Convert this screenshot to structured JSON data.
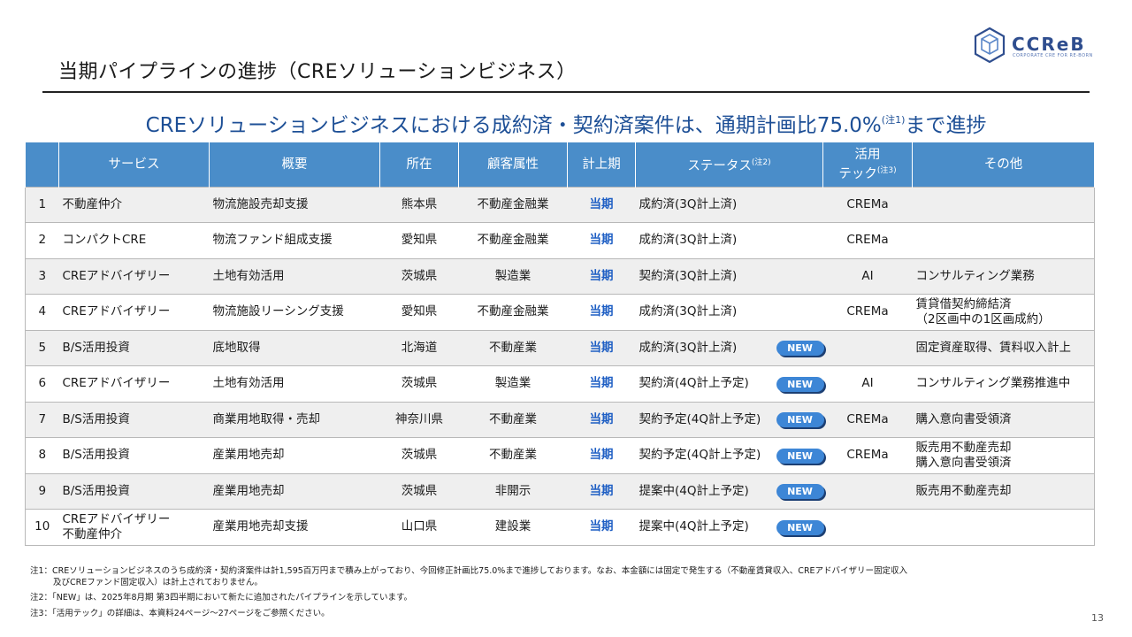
{
  "slide": {
    "title": "当期パイプラインの進捗（CREソリューションビジネス）",
    "headline_main": "CREソリューションビジネスにおける成約済・契約済案件は、通期計画比75.0%",
    "headline_sup": "(注1)",
    "headline_tail": "まで進捗",
    "page_number": "13"
  },
  "logo": {
    "text": "CCReB",
    "subtext": "CORPORATE CRE FOR RE-BORN"
  },
  "table": {
    "headers": {
      "service": "サービス",
      "summary": "概要",
      "location": "所在",
      "client": "顧客属性",
      "period": "計上期",
      "status": "ステータス",
      "status_note": "(注2)",
      "tech_line1": "活用",
      "tech_line2": "テック",
      "tech_note": "(注3)",
      "other": "その他"
    },
    "new_label": "NEW",
    "rows": [
      {
        "no": "1",
        "service": "不動産仲介",
        "service2": "",
        "summary": "物流施設売却支援",
        "location": "熊本県",
        "client": "不動産金融業",
        "period": "当期",
        "status": "成約済(3Q計上済)",
        "is_new": false,
        "tech": "CREMa",
        "other": "",
        "other2": ""
      },
      {
        "no": "2",
        "service": "コンパクトCRE",
        "service2": "",
        "summary": "物流ファンド組成支援",
        "location": "愛知県",
        "client": "不動産金融業",
        "period": "当期",
        "status": "成約済(3Q計上済)",
        "is_new": false,
        "tech": "CREMa",
        "other": "",
        "other2": ""
      },
      {
        "no": "3",
        "service": "CREアドバイザリー",
        "service2": "",
        "summary": "土地有効活用",
        "location": "茨城県",
        "client": "製造業",
        "period": "当期",
        "status": "契約済(3Q計上済)",
        "is_new": false,
        "tech": "AI",
        "other": "コンサルティング業務",
        "other2": ""
      },
      {
        "no": "4",
        "service": "CREアドバイザリー",
        "service2": "",
        "summary": "物流施設リーシング支援",
        "location": "愛知県",
        "client": "不動産金融業",
        "period": "当期",
        "status": "成約済(3Q計上済)",
        "is_new": false,
        "tech": "CREMa",
        "other": "賃貸借契約締結済",
        "other2": "（2区画中の1区画成約）"
      },
      {
        "no": "5",
        "service": "B/S活用投資",
        "service2": "",
        "summary": "底地取得",
        "location": "北海道",
        "client": "不動産業",
        "period": "当期",
        "status": "成約済(3Q計上済)",
        "is_new": true,
        "tech": "",
        "other": "固定資産取得、賃料収入計上",
        "other2": ""
      },
      {
        "no": "6",
        "service": "CREアドバイザリー",
        "service2": "",
        "summary": "土地有効活用",
        "location": "茨城県",
        "client": "製造業",
        "period": "当期",
        "status": "契約済(4Q計上予定)",
        "is_new": true,
        "tech": "AI",
        "other": "コンサルティング業務推進中",
        "other2": ""
      },
      {
        "no": "7",
        "service": "B/S活用投資",
        "service2": "",
        "summary": "商業用地取得・売却",
        "location": "神奈川県",
        "client": "不動産業",
        "period": "当期",
        "status": "契約予定(4Q計上予定)",
        "is_new": true,
        "tech": "CREMa",
        "other": "購入意向書受領済",
        "other2": ""
      },
      {
        "no": "8",
        "service": "B/S活用投資",
        "service2": "",
        "summary": "産業用地売却",
        "location": "茨城県",
        "client": "不動産業",
        "period": "当期",
        "status": "契約予定(4Q計上予定)",
        "is_new": true,
        "tech": "CREMa",
        "other": "販売用不動産売却",
        "other2": "購入意向書受領済"
      },
      {
        "no": "9",
        "service": "B/S活用投資",
        "service2": "",
        "summary": "産業用地売却",
        "location": "茨城県",
        "client": "非開示",
        "period": "当期",
        "status": "提案中(4Q計上予定)",
        "is_new": true,
        "tech": "",
        "other": "販売用不動産売却",
        "other2": ""
      },
      {
        "no": "10",
        "service": "CREアドバイザリー",
        "service2": "不動産仲介",
        "summary": "産業用地売却支援",
        "location": "山口県",
        "client": "建設業",
        "period": "当期",
        "status": "提案中(4Q計上予定)",
        "is_new": true,
        "tech": "",
        "other": "",
        "other2": ""
      }
    ]
  },
  "notes": {
    "note1_line1": "注1：CREソリューションビジネスのうち成約済・契約済案件は計1,595百万円まで積み上がっており、今回修正計画比75.0%まで進捗しております。なお、本金額には固定で発生する（不動産賃貸収入、CREアドバイザリー固定収入",
    "note1_line2": "及びCREファンド固定収入）は計上されておりません。",
    "note2": "注2：「NEW」は、2025年8月期 第3四半期において新たに追加されたパイプラインを示しています。",
    "note3": "注3：「活用テック」の詳細は、本資料24ページ～27ページをご参照ください。"
  },
  "colors": {
    "header_blue": "#4a8dc9",
    "headline_blue": "#1d4f96",
    "period_blue": "#1f5fc4",
    "badge_blue": "#3d86d6"
  }
}
